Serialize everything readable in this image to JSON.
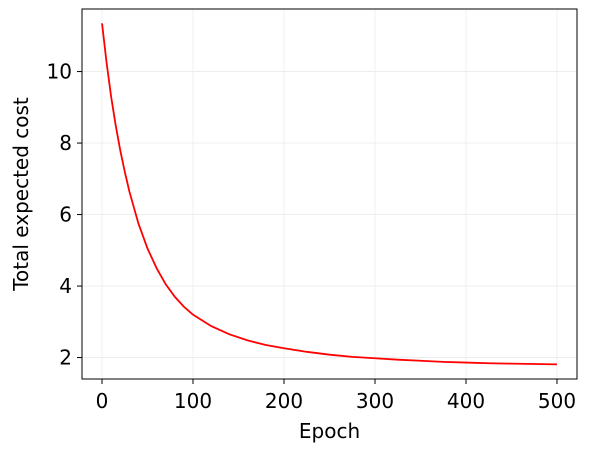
{
  "chart_data": {
    "type": "line",
    "xlabel": "Epoch",
    "ylabel": "Total expected cost",
    "xlim": [
      -22,
      522
    ],
    "ylim": [
      1.4,
      11.75
    ],
    "xticks": [
      0,
      100,
      200,
      300,
      400,
      500
    ],
    "yticks": [
      2,
      4,
      6,
      8,
      10
    ],
    "xtick_labels": [
      "0",
      "100",
      "200",
      "300",
      "400",
      "500"
    ],
    "ytick_labels": [
      "2",
      "4",
      "6",
      "8",
      "10"
    ],
    "grid": true,
    "line_color": "#ff0000",
    "series": [
      {
        "x": [
          0,
          5,
          10,
          15,
          20,
          25,
          30,
          40,
          50,
          60,
          70,
          80,
          90,
          100,
          120,
          140,
          160,
          180,
          200,
          225,
          250,
          275,
          300,
          325,
          350,
          375,
          400,
          425,
          450,
          475,
          500
        ],
        "y": [
          11.35,
          10.25,
          9.3,
          8.5,
          7.8,
          7.2,
          6.65,
          5.75,
          5.05,
          4.5,
          4.05,
          3.7,
          3.42,
          3.2,
          2.88,
          2.65,
          2.48,
          2.35,
          2.26,
          2.16,
          2.08,
          2.02,
          1.98,
          1.94,
          1.91,
          1.88,
          1.86,
          1.84,
          1.83,
          1.82,
          1.81
        ]
      }
    ]
  }
}
